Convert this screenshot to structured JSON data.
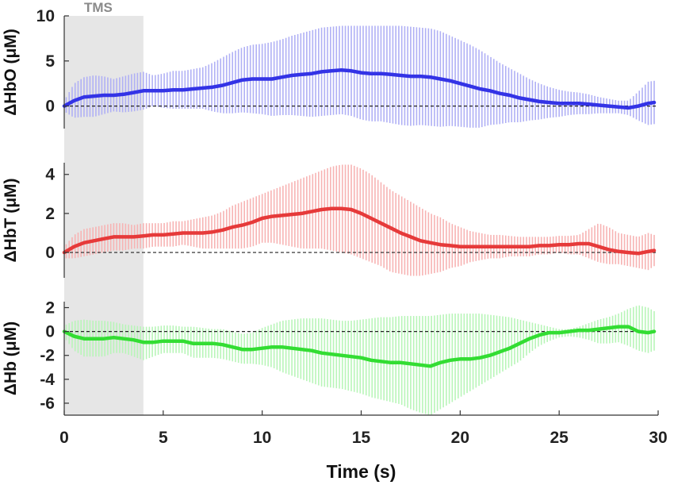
{
  "stim_label": "TMS",
  "chart_data": [
    {
      "type": "line",
      "ylabel": "ΔHbO (μM)",
      "ylim": [
        -2.5,
        10
      ],
      "yticks": [
        0,
        5,
        10
      ],
      "color": "#3333e6",
      "band_color": "#b0b0f5",
      "x": [
        0,
        0.5,
        1,
        1.5,
        2,
        2.5,
        3,
        3.5,
        4,
        4.5,
        5,
        5.5,
        6,
        6.5,
        7,
        7.5,
        8,
        8.5,
        9,
        9.5,
        10,
        10.5,
        11,
        11.5,
        12,
        12.5,
        13,
        13.5,
        14,
        14.5,
        15,
        15.5,
        16,
        16.5,
        17,
        17.5,
        18,
        18.5,
        19,
        19.5,
        20,
        20.5,
        21,
        21.5,
        22,
        22.5,
        23,
        23.5,
        24,
        24.5,
        25,
        25.5,
        26,
        26.5,
        27,
        27.5,
        28,
        28.5,
        29,
        29.5,
        29.8
      ],
      "mean": [
        0,
        0.6,
        1.0,
        1.1,
        1.2,
        1.2,
        1.3,
        1.5,
        1.7,
        1.7,
        1.7,
        1.8,
        1.8,
        1.9,
        2.0,
        2.1,
        2.3,
        2.6,
        2.9,
        3.0,
        3.0,
        3.0,
        3.2,
        3.4,
        3.5,
        3.6,
        3.8,
        3.9,
        4.0,
        3.9,
        3.7,
        3.6,
        3.6,
        3.5,
        3.4,
        3.3,
        3.3,
        3.2,
        3.0,
        2.8,
        2.5,
        2.2,
        1.9,
        1.7,
        1.4,
        1.2,
        0.9,
        0.7,
        0.5,
        0.4,
        0.3,
        0.3,
        0.3,
        0.2,
        0.1,
        0.0,
        -0.1,
        -0.2,
        0.0,
        0.3,
        0.4
      ],
      "upper": [
        0.6,
        2.5,
        3.2,
        3.4,
        3.3,
        3.0,
        3.3,
        3.6,
        3.8,
        3.4,
        3.6,
        3.9,
        3.9,
        4.1,
        4.3,
        4.8,
        5.4,
        6.0,
        6.5,
        6.8,
        6.9,
        7.1,
        7.4,
        7.8,
        8.1,
        8.4,
        8.7,
        8.8,
        8.9,
        8.9,
        8.9,
        8.9,
        8.9,
        8.9,
        8.9,
        8.8,
        8.7,
        8.6,
        8.3,
        7.8,
        7.3,
        6.8,
        6.2,
        5.5,
        4.8,
        4.2,
        3.6,
        3.0,
        2.5,
        2.1,
        1.8,
        1.6,
        1.5,
        1.3,
        1.0,
        0.8,
        0.6,
        0.6,
        1.6,
        2.7,
        2.8
      ],
      "lower": [
        -0.6,
        -1.3,
        -1.2,
        -1.2,
        -0.9,
        -0.6,
        -0.7,
        -0.6,
        -0.4,
        0.0,
        -0.2,
        -0.3,
        -0.3,
        -0.3,
        -0.3,
        -0.6,
        -0.8,
        -0.8,
        -0.7,
        -0.8,
        -0.9,
        -1.1,
        -1.0,
        -1.0,
        -1.1,
        -1.2,
        -1.1,
        -1.0,
        -0.9,
        -1.1,
        -1.5,
        -1.7,
        -1.7,
        -1.9,
        -2.1,
        -2.2,
        -2.1,
        -2.2,
        -2.3,
        -2.2,
        -2.3,
        -2.4,
        -2.4,
        -2.1,
        -2.0,
        -1.8,
        -1.8,
        -1.6,
        -1.5,
        -1.3,
        -1.2,
        -1.0,
        -0.9,
        -0.9,
        -0.8,
        -0.8,
        -0.8,
        -1.0,
        -1.6,
        -2.1,
        -2.0
      ]
    },
    {
      "type": "line",
      "ylabel": "ΔHbT (μM)",
      "ylim": [
        -1.3,
        4.6
      ],
      "yticks": [
        0,
        2,
        4
      ],
      "color": "#e63a3a",
      "band_color": "#f7b3b3",
      "x": [
        0,
        0.5,
        1,
        1.5,
        2,
        2.5,
        3,
        3.5,
        4,
        4.5,
        5,
        5.5,
        6,
        6.5,
        7,
        7.5,
        8,
        8.5,
        9,
        9.5,
        10,
        10.5,
        11,
        11.5,
        12,
        12.5,
        13,
        13.5,
        14,
        14.5,
        15,
        15.5,
        16,
        16.5,
        17,
        17.5,
        18,
        18.5,
        19,
        19.5,
        20,
        20.5,
        21,
        21.5,
        22,
        22.5,
        23,
        23.5,
        24,
        24.5,
        25,
        25.5,
        26,
        26.5,
        27,
        27.5,
        28,
        28.5,
        29,
        29.5,
        29.8
      ],
      "mean": [
        0,
        0.3,
        0.5,
        0.6,
        0.7,
        0.8,
        0.8,
        0.8,
        0.85,
        0.9,
        0.9,
        0.95,
        1.0,
        1.0,
        1.0,
        1.05,
        1.15,
        1.3,
        1.4,
        1.55,
        1.75,
        1.85,
        1.9,
        1.95,
        2.0,
        2.1,
        2.2,
        2.25,
        2.25,
        2.2,
        2.0,
        1.75,
        1.5,
        1.25,
        1.0,
        0.8,
        0.6,
        0.5,
        0.4,
        0.35,
        0.3,
        0.3,
        0.3,
        0.3,
        0.3,
        0.3,
        0.3,
        0.3,
        0.35,
        0.35,
        0.4,
        0.4,
        0.45,
        0.45,
        0.3,
        0.15,
        0.05,
        0.0,
        -0.05,
        0.05,
        0.1
      ],
      "upper": [
        0.3,
        0.9,
        1.2,
        1.3,
        1.4,
        1.5,
        1.5,
        1.4,
        1.5,
        1.5,
        1.5,
        1.6,
        1.6,
        1.7,
        1.8,
        1.9,
        2.1,
        2.4,
        2.6,
        2.8,
        3.0,
        3.2,
        3.4,
        3.6,
        3.8,
        4.0,
        4.2,
        4.4,
        4.5,
        4.5,
        4.3,
        4.0,
        3.6,
        3.2,
        2.9,
        2.6,
        2.3,
        2.0,
        1.8,
        1.5,
        1.3,
        1.1,
        1.0,
        0.9,
        0.9,
        0.85,
        0.8,
        0.8,
        0.8,
        0.8,
        0.85,
        0.85,
        0.9,
        1.2,
        1.5,
        1.3,
        1.0,
        0.9,
        0.8,
        1.0,
        0.9
      ],
      "lower": [
        -0.3,
        -0.3,
        -0.2,
        -0.1,
        0.0,
        0.1,
        0.1,
        0.2,
        0.2,
        0.3,
        0.3,
        0.3,
        0.4,
        0.3,
        0.2,
        0.2,
        0.2,
        0.2,
        0.2,
        0.3,
        0.5,
        0.5,
        0.4,
        0.3,
        0.2,
        0.2,
        0.2,
        0.1,
        0.0,
        -0.1,
        -0.3,
        -0.5,
        -0.7,
        -1.0,
        -1.1,
        -1.2,
        -1.2,
        -1.1,
        -1.0,
        -0.8,
        -0.7,
        -0.5,
        -0.4,
        -0.3,
        -0.3,
        -0.2,
        -0.2,
        -0.2,
        -0.1,
        -0.1,
        0.0,
        -0.1,
        -0.1,
        -0.3,
        -0.5,
        -0.6,
        -0.6,
        -0.7,
        -0.8,
        -0.9,
        -0.7
      ]
    },
    {
      "type": "line",
      "ylabel": "ΔHb (μM)",
      "ylim": [
        -7,
        2.5
      ],
      "yticks": [
        -6,
        -4,
        -2,
        0,
        2
      ],
      "color": "#33dd33",
      "band_color": "#b8f5b8",
      "x": [
        0,
        0.5,
        1,
        1.5,
        2,
        2.5,
        3,
        3.5,
        4,
        4.5,
        5,
        5.5,
        6,
        6.5,
        7,
        7.5,
        8,
        8.5,
        9,
        9.5,
        10,
        10.5,
        11,
        11.5,
        12,
        12.5,
        13,
        13.5,
        14,
        14.5,
        15,
        15.5,
        16,
        16.5,
        17,
        17.5,
        18,
        18.5,
        19,
        19.5,
        20,
        20.5,
        21,
        21.5,
        22,
        22.5,
        23,
        23.5,
        24,
        24.5,
        25,
        25.5,
        26,
        26.5,
        27,
        27.5,
        28,
        28.5,
        29,
        29.5,
        29.8
      ],
      "mean": [
        0,
        -0.4,
        -0.6,
        -0.6,
        -0.6,
        -0.5,
        -0.6,
        -0.7,
        -0.9,
        -0.9,
        -0.8,
        -0.8,
        -0.8,
        -1.0,
        -1.0,
        -1.0,
        -1.1,
        -1.3,
        -1.5,
        -1.5,
        -1.4,
        -1.3,
        -1.3,
        -1.4,
        -1.5,
        -1.6,
        -1.8,
        -1.9,
        -2.0,
        -2.1,
        -2.2,
        -2.4,
        -2.5,
        -2.6,
        -2.6,
        -2.7,
        -2.8,
        -2.9,
        -2.6,
        -2.4,
        -2.3,
        -2.3,
        -2.2,
        -2.0,
        -1.7,
        -1.4,
        -1.0,
        -0.6,
        -0.3,
        -0.1,
        -0.1,
        0.0,
        0.1,
        0.1,
        0.2,
        0.3,
        0.4,
        0.4,
        0.0,
        -0.1,
        0.0
      ],
      "upper": [
        0.5,
        0.9,
        1.0,
        0.9,
        0.9,
        0.8,
        0.6,
        0.5,
        0.4,
        0.4,
        0.5,
        0.5,
        0.4,
        0.4,
        0.3,
        0.2,
        0.2,
        0.0,
        -0.2,
        -0.1,
        0.3,
        0.6,
        0.9,
        1.0,
        1.1,
        1.1,
        1.1,
        1.0,
        0.9,
        0.9,
        1.0,
        1.1,
        1.2,
        1.2,
        1.3,
        1.3,
        1.3,
        1.3,
        1.4,
        1.5,
        1.5,
        1.5,
        1.5,
        1.4,
        1.3,
        1.2,
        1.0,
        0.8,
        0.6,
        0.4,
        0.2,
        0.2,
        0.4,
        0.7,
        1.0,
        1.2,
        1.5,
        1.9,
        2.2,
        2.0,
        1.7
      ],
      "lower": [
        -0.5,
        -1.6,
        -2.1,
        -2.1,
        -2.1,
        -1.8,
        -1.8,
        -2.1,
        -2.4,
        -2.1,
        -1.8,
        -1.8,
        -1.8,
        -2.2,
        -2.2,
        -2.2,
        -2.3,
        -2.5,
        -2.7,
        -2.7,
        -2.8,
        -3.0,
        -3.4,
        -3.7,
        -4.0,
        -4.3,
        -4.6,
        -4.7,
        -4.8,
        -5.0,
        -5.2,
        -5.5,
        -5.7,
        -5.9,
        -6.1,
        -6.5,
        -6.8,
        -7.0,
        -6.5,
        -6.0,
        -5.5,
        -5.0,
        -4.5,
        -4.0,
        -3.5,
        -3.0,
        -2.5,
        -1.8,
        -1.2,
        -0.8,
        -0.5,
        -0.4,
        -0.5,
        -0.7,
        -1.0,
        -1.0,
        -0.9,
        -1.2,
        -1.6,
        -1.8,
        -1.6
      ]
    }
  ],
  "x_axis": {
    "label": "Time (s)",
    "xlim": [
      0,
      30
    ],
    "ticks": [
      0,
      5,
      10,
      15,
      20,
      25,
      30
    ],
    "stim_window": [
      0,
      4
    ]
  }
}
